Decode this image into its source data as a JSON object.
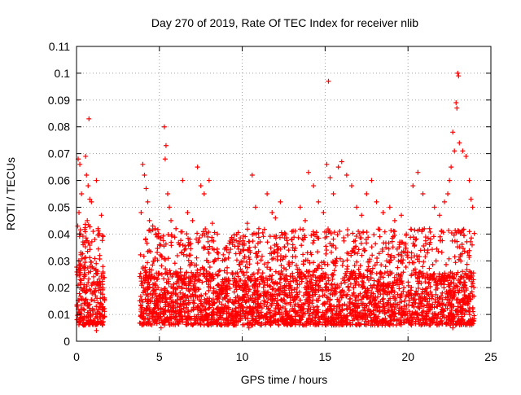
{
  "chart_data": {
    "type": "scatter",
    "title": "Day 270 of 2019, Rate Of TEC Index for receiver nlib",
    "xlabel": "GPS time / hours",
    "ylabel": "ROTI / TECUs",
    "xlim": [
      0,
      25
    ],
    "ylim": [
      0,
      0.11
    ],
    "x_ticks": [
      "0",
      "5",
      "10",
      "15",
      "20",
      "25"
    ],
    "y_ticks": [
      "0",
      "0.01",
      "0.02",
      "0.03",
      "0.04",
      "0.05",
      "0.06",
      "0.07",
      "0.08",
      "0.09",
      "0.1",
      "0.11"
    ],
    "grid": true,
    "marker": "plus",
    "series": [
      {
        "color": "#ff0000",
        "segments": [
          {
            "x_start": 0.0,
            "x_end": 1.7,
            "base_min": 0.006,
            "base_max": 0.028
          },
          {
            "x_start": 3.8,
            "x_end": 24.0,
            "base_min": 0.006,
            "base_max": 0.026
          }
        ],
        "points": [
          [
            0.1,
            0.068
          ],
          [
            0.2,
            0.066
          ],
          [
            0.3,
            0.055
          ],
          [
            0.15,
            0.048
          ],
          [
            0.25,
            0.04
          ],
          [
            0.4,
            0.036
          ],
          [
            0.55,
            0.069
          ],
          [
            0.6,
            0.062
          ],
          [
            0.7,
            0.058
          ],
          [
            0.75,
            0.083
          ],
          [
            0.8,
            0.053
          ],
          [
            0.65,
            0.045
          ],
          [
            0.9,
            0.052
          ],
          [
            1.0,
            0.041
          ],
          [
            1.1,
            0.038
          ],
          [
            1.3,
            0.042
          ],
          [
            1.5,
            0.047
          ],
          [
            1.2,
            0.06
          ],
          [
            4.0,
            0.066
          ],
          [
            4.1,
            0.062
          ],
          [
            4.2,
            0.057
          ],
          [
            4.3,
            0.052
          ],
          [
            3.9,
            0.048
          ],
          [
            4.4,
            0.045
          ],
          [
            4.6,
            0.043
          ],
          [
            4.8,
            0.04
          ],
          [
            5.0,
            0.036
          ],
          [
            5.3,
            0.08
          ],
          [
            5.4,
            0.073
          ],
          [
            5.35,
            0.068
          ],
          [
            5.5,
            0.055
          ],
          [
            5.6,
            0.05
          ],
          [
            5.7,
            0.045
          ],
          [
            6.0,
            0.042
          ],
          [
            6.4,
            0.06
          ],
          [
            6.7,
            0.048
          ],
          [
            7.0,
            0.045
          ],
          [
            7.3,
            0.065
          ],
          [
            7.5,
            0.058
          ],
          [
            7.7,
            0.055
          ],
          [
            8.0,
            0.06
          ],
          [
            8.2,
            0.044
          ],
          [
            8.5,
            0.04
          ],
          [
            9.0,
            0.035
          ],
          [
            9.5,
            0.038
          ],
          [
            10.0,
            0.036
          ],
          [
            10.3,
            0.044
          ],
          [
            10.6,
            0.062
          ],
          [
            10.8,
            0.05
          ],
          [
            11.0,
            0.042
          ],
          [
            11.5,
            0.055
          ],
          [
            11.8,
            0.048
          ],
          [
            12.0,
            0.046
          ],
          [
            12.3,
            0.052
          ],
          [
            12.6,
            0.04
          ],
          [
            13.0,
            0.038
          ],
          [
            13.5,
            0.05
          ],
          [
            13.8,
            0.045
          ],
          [
            14.0,
            0.063
          ],
          [
            14.3,
            0.058
          ],
          [
            14.6,
            0.052
          ],
          [
            14.9,
            0.048
          ],
          [
            15.1,
            0.066
          ],
          [
            15.2,
            0.097
          ],
          [
            15.3,
            0.061
          ],
          [
            15.5,
            0.055
          ],
          [
            15.8,
            0.065
          ],
          [
            16.0,
            0.067
          ],
          [
            16.3,
            0.062
          ],
          [
            16.6,
            0.058
          ],
          [
            16.9,
            0.05
          ],
          [
            17.2,
            0.047
          ],
          [
            17.5,
            0.055
          ],
          [
            17.8,
            0.06
          ],
          [
            18.1,
            0.052
          ],
          [
            18.5,
            0.048
          ],
          [
            18.9,
            0.05
          ],
          [
            19.2,
            0.045
          ],
          [
            19.6,
            0.047
          ],
          [
            19.9,
            0.04
          ],
          [
            20.3,
            0.058
          ],
          [
            20.6,
            0.063
          ],
          [
            20.9,
            0.055
          ],
          [
            21.3,
            0.042
          ],
          [
            21.6,
            0.05
          ],
          [
            21.9,
            0.047
          ],
          [
            22.2,
            0.052
          ],
          [
            22.5,
            0.06
          ],
          [
            22.7,
            0.078
          ],
          [
            22.8,
            0.071
          ],
          [
            22.9,
            0.089
          ],
          [
            22.95,
            0.087
          ],
          [
            23.0,
            0.1
          ],
          [
            23.05,
            0.099
          ],
          [
            23.1,
            0.074
          ],
          [
            23.3,
            0.071
          ],
          [
            23.5,
            0.069
          ],
          [
            23.7,
            0.06
          ],
          [
            23.8,
            0.053
          ],
          [
            23.9,
            0.05
          ],
          [
            22.6,
            0.065
          ],
          [
            22.4,
            0.055
          ],
          [
            0.5,
            0.031
          ],
          [
            1.4,
            0.032
          ],
          [
            6.2,
            0.036
          ],
          [
            9.2,
            0.033
          ],
          [
            12.8,
            0.034
          ],
          [
            16.8,
            0.033
          ],
          [
            19.0,
            0.032
          ],
          [
            21.0,
            0.034
          ],
          [
            23.6,
            0.033
          ],
          [
            17.0,
            0.041
          ],
          [
            14.5,
            0.039
          ],
          [
            18.3,
            0.039
          ],
          [
            22.7,
            0.005
          ],
          [
            1.2,
            0.004
          ],
          [
            10.4,
            0.005
          ],
          [
            15.4,
            0.006
          ],
          [
            5.1,
            0.005
          ]
        ]
      }
    ]
  }
}
